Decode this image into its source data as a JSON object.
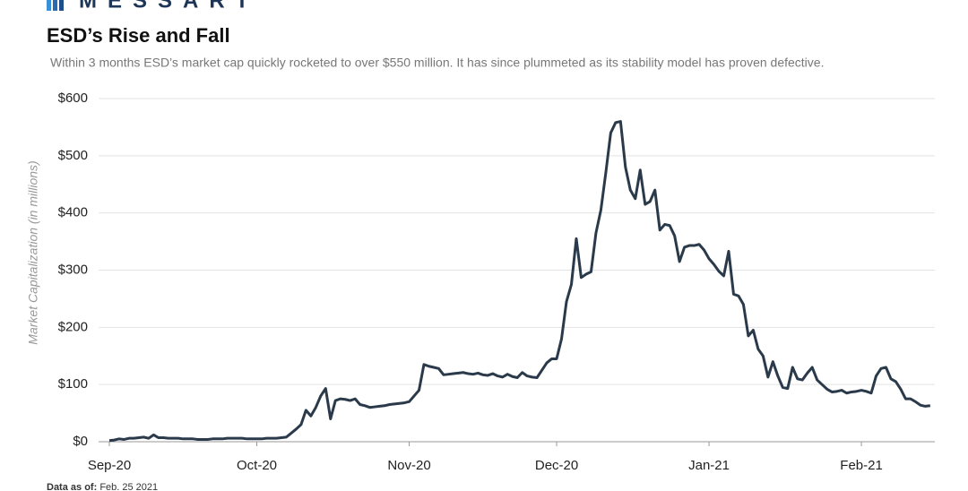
{
  "brand": "MESSART",
  "chart_data": {
    "type": "line",
    "title": "ESD’s Rise and Fall",
    "subtitle": "Within 3 months ESD’s market cap quickly rocketed to over $550 million. It has since plummeted as its stability model has proven defective.",
    "y_label": "Market Capitalization (in millions)",
    "footer": {
      "label": "Data as of:",
      "date": "Feb. 25 2021"
    },
    "color": "#2b3a4a",
    "grid": true,
    "ylim": [
      0,
      600
    ],
    "yticks": [
      {
        "value": 0,
        "label": "$0"
      },
      {
        "value": 100,
        "label": "$100"
      },
      {
        "value": 200,
        "label": "$200"
      },
      {
        "value": 300,
        "label": "$300"
      },
      {
        "value": 400,
        "label": "$400"
      },
      {
        "value": 500,
        "label": "$500"
      },
      {
        "value": 600,
        "label": "$600"
      }
    ],
    "categories": [
      "Sep-20",
      null,
      null,
      null,
      null,
      null,
      null,
      null,
      null,
      null,
      null,
      null,
      null,
      null,
      null,
      null,
      null,
      null,
      null,
      null,
      null,
      null,
      null,
      null,
      null,
      null,
      null,
      null,
      null,
      null,
      "Oct-20",
      null,
      null,
      null,
      null,
      null,
      null,
      null,
      null,
      null,
      null,
      null,
      null,
      null,
      null,
      null,
      null,
      null,
      null,
      null,
      null,
      null,
      null,
      null,
      null,
      null,
      null,
      null,
      null,
      null,
      null,
      "Nov-20",
      null,
      null,
      null,
      null,
      null,
      null,
      null,
      null,
      null,
      null,
      null,
      null,
      null,
      null,
      null,
      null,
      null,
      null,
      null,
      null,
      null,
      null,
      null,
      null,
      null,
      null,
      null,
      null,
      null,
      "Dec-20",
      null,
      null,
      null,
      null,
      null,
      null,
      null,
      null,
      null,
      null,
      null,
      null,
      null,
      null,
      null,
      null,
      null,
      null,
      null,
      null,
      null,
      null,
      null,
      null,
      null,
      null,
      null,
      null,
      null,
      null,
      "Jan-21",
      null,
      null,
      null,
      null,
      null,
      null,
      null,
      null,
      null,
      null,
      null,
      null,
      null,
      null,
      null,
      null,
      null,
      null,
      null,
      null,
      null,
      null,
      null,
      null,
      null,
      null,
      null,
      null,
      null,
      null,
      "Feb-21",
      null,
      null,
      null,
      null,
      null,
      null,
      null,
      null,
      null,
      null,
      null,
      null,
      null,
      null
    ],
    "values": [
      2,
      3,
      5,
      4,
      6,
      6,
      7,
      8,
      6,
      12,
      7,
      7,
      6,
      6,
      6,
      5,
      5,
      5,
      4,
      4,
      4,
      5,
      5,
      5,
      6,
      6,
      6,
      6,
      5,
      5,
      5,
      5,
      6,
      6,
      6,
      7,
      8,
      15,
      22,
      30,
      55,
      45,
      60,
      80,
      93,
      40,
      72,
      75,
      74,
      72,
      75,
      65,
      63,
      60,
      61,
      62,
      63,
      65,
      66,
      67,
      68,
      70,
      80,
      90,
      135,
      132,
      130,
      128,
      117,
      118,
      119,
      120,
      121,
      119,
      118,
      120,
      117,
      116,
      119,
      115,
      113,
      118,
      114,
      112,
      121,
      115,
      113,
      112,
      125,
      138,
      145,
      145,
      180,
      245,
      275,
      355,
      287,
      293,
      297,
      365,
      405,
      470,
      540,
      558,
      560,
      480,
      440,
      425,
      475,
      415,
      420,
      440,
      370,
      380,
      378,
      360,
      315,
      340,
      343,
      343,
      345,
      335,
      320,
      310,
      298,
      290,
      333,
      258,
      255,
      240,
      185,
      195,
      162,
      150,
      113,
      140,
      115,
      95,
      93,
      130,
      110,
      108,
      120,
      130,
      108,
      100,
      92,
      87,
      88,
      90,
      85,
      87,
      88,
      90,
      88,
      85,
      115,
      128,
      130,
      110,
      105,
      92,
      75,
      75,
      70,
      64,
      62,
      63
    ]
  }
}
